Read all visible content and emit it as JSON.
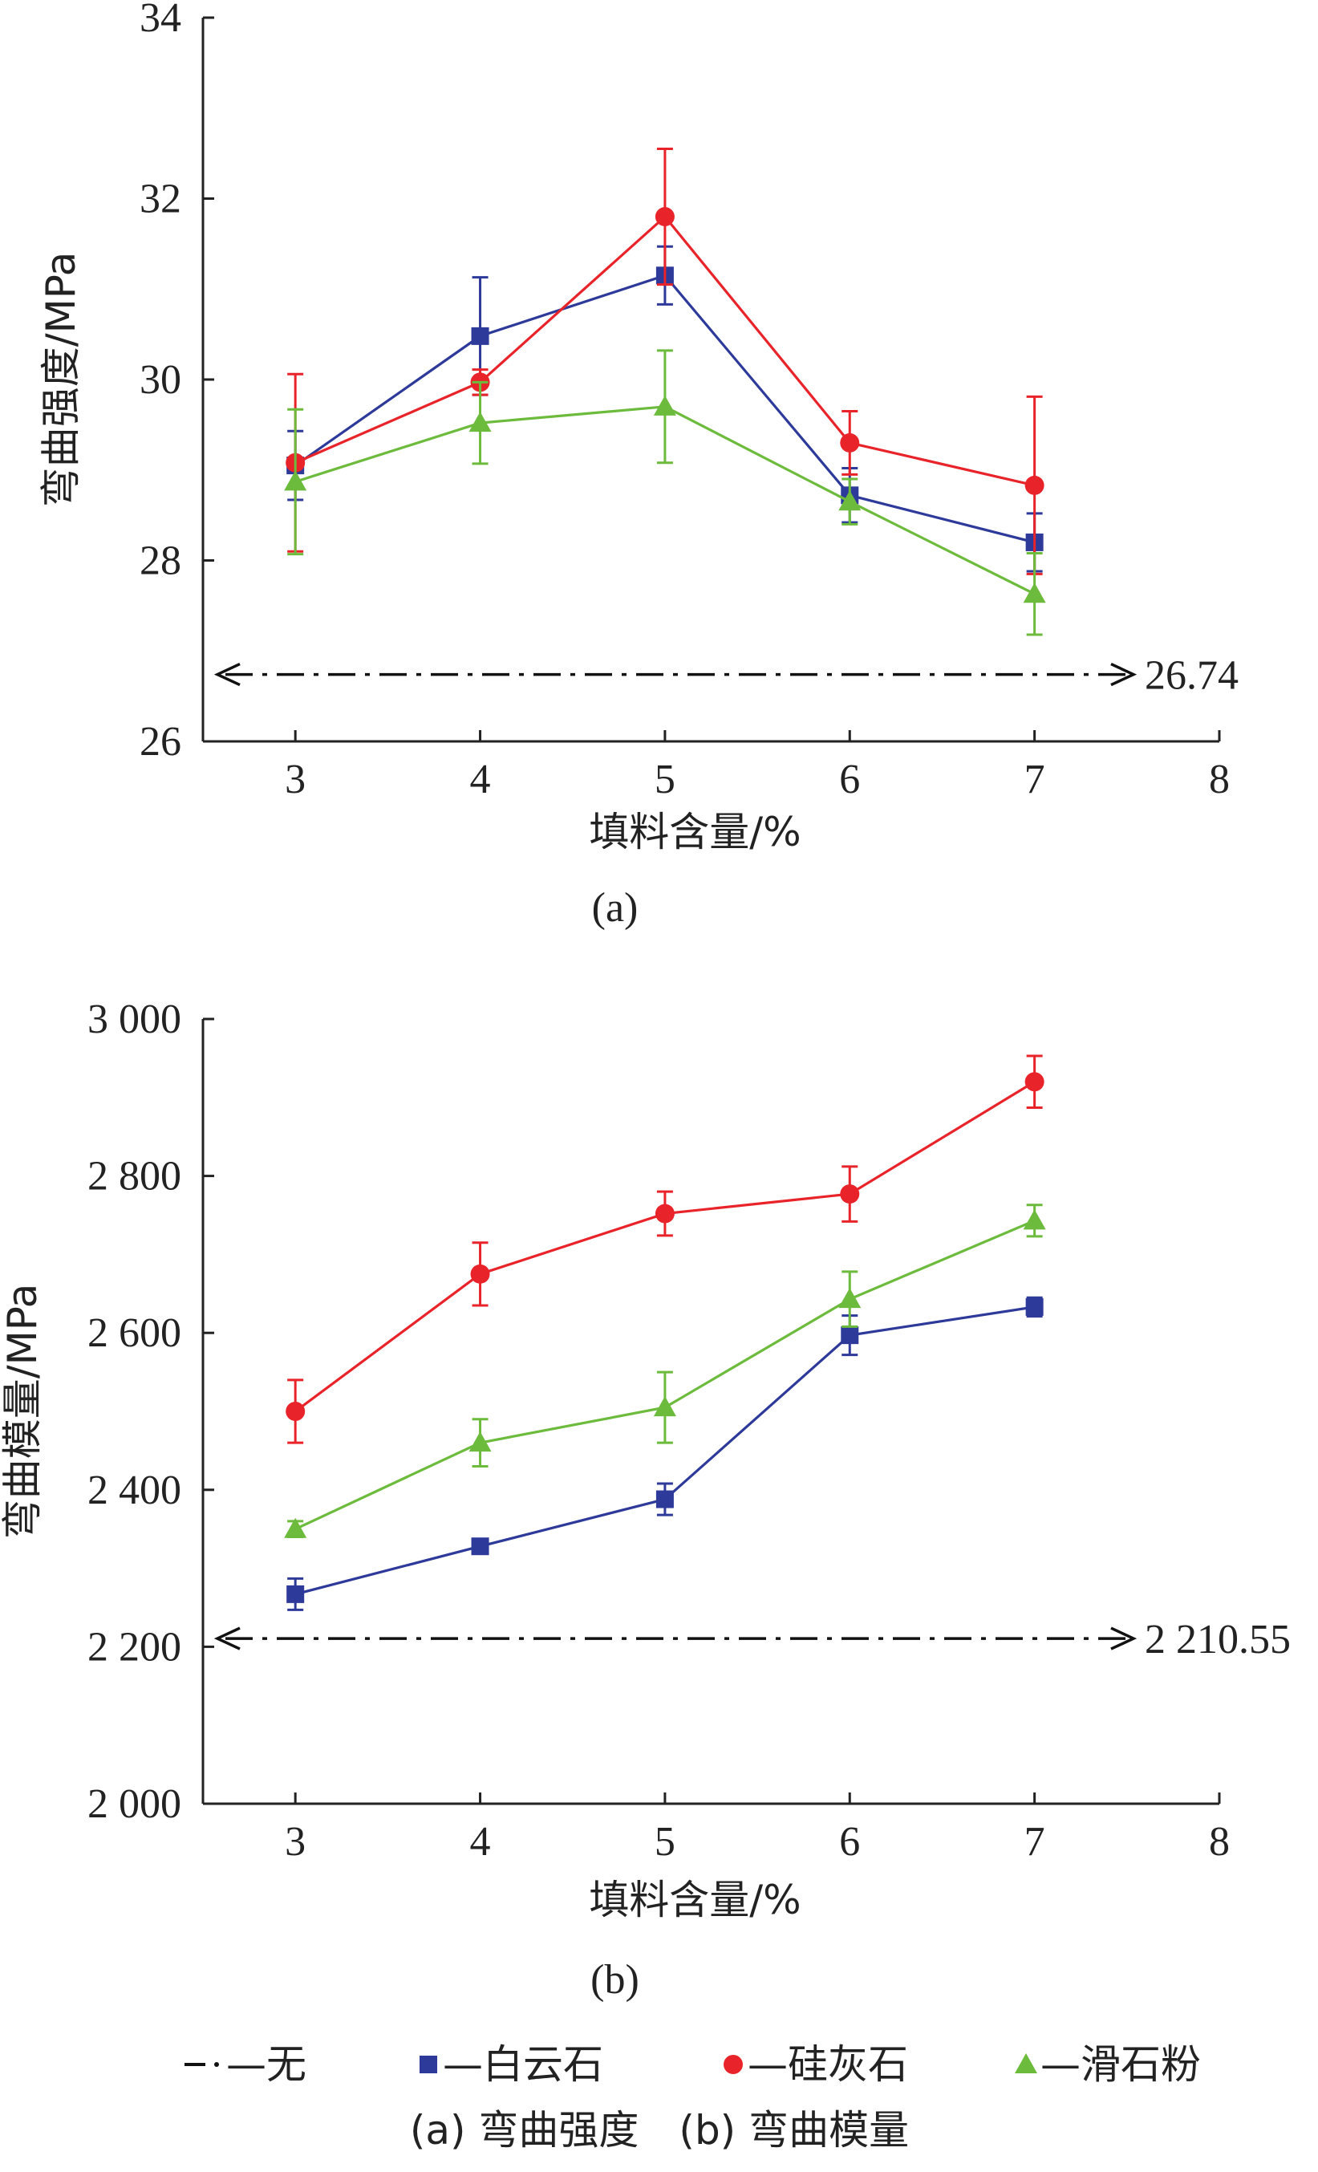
{
  "chart_data": [
    {
      "type": "line",
      "panel_label": "(a)",
      "xlabel": "填料含量/%",
      "ylabel": "弯曲强度/MPa",
      "xlim": [
        2.5,
        8
      ],
      "ylim": [
        26,
        34
      ],
      "xticks": [
        "3",
        "4",
        "5",
        "6",
        "7",
        "8"
      ],
      "yticks": [
        "26",
        "28",
        "30",
        "32",
        "34"
      ],
      "reference": {
        "label": "无",
        "value": 26.74,
        "value_label": "26.74"
      },
      "x": [
        3,
        4,
        5,
        6,
        7
      ],
      "series": [
        {
          "name": "白云石",
          "color": "#2e3a9a",
          "marker": "square",
          "values": [
            29.05,
            30.48,
            31.15,
            28.72,
            28.2
          ],
          "errors": [
            0.38,
            0.65,
            0.32,
            0.3,
            0.32
          ]
        },
        {
          "name": "硅灰石",
          "color": "#e8242a",
          "marker": "circle",
          "values": [
            29.08,
            29.97,
            31.8,
            29.3,
            28.83
          ],
          "errors": [
            0.98,
            0.14,
            0.75,
            0.35,
            0.98
          ]
        },
        {
          "name": "滑石粉",
          "color": "#6cbb3c",
          "marker": "triangle",
          "values": [
            28.87,
            29.52,
            29.7,
            28.65,
            27.63
          ],
          "errors": [
            0.8,
            0.45,
            0.62,
            0.25,
            0.45
          ]
        }
      ]
    },
    {
      "type": "line",
      "panel_label": "(b)",
      "xlabel": "填料含量/%",
      "ylabel": "弯曲模量/MPa",
      "xlim": [
        2.5,
        8
      ],
      "ylim": [
        2000,
        3000
      ],
      "xticks": [
        "3",
        "4",
        "5",
        "6",
        "7",
        "8"
      ],
      "yticks": [
        "2 000",
        "2 200",
        "2 400",
        "2 600",
        "2 800",
        "3 000"
      ],
      "reference": {
        "label": "无",
        "value": 2210.55,
        "value_label": "2 210.55"
      },
      "x": [
        3,
        4,
        5,
        6,
        7
      ],
      "series": [
        {
          "name": "白云石",
          "color": "#2e3a9a",
          "marker": "square",
          "values": [
            2267,
            2328,
            2388,
            2597,
            2633
          ],
          "errors": [
            20,
            6,
            20,
            25,
            12
          ]
        },
        {
          "name": "硅灰石",
          "color": "#e8242a",
          "marker": "circle",
          "values": [
            2500,
            2675,
            2752,
            2777,
            2920
          ],
          "errors": [
            40,
            40,
            28,
            35,
            33
          ]
        },
        {
          "name": "滑石粉",
          "color": "#6cbb3c",
          "marker": "triangle",
          "values": [
            2350,
            2460,
            2505,
            2643,
            2743
          ],
          "errors": [
            10,
            30,
            45,
            35,
            20
          ]
        }
      ]
    }
  ],
  "legend": [
    {
      "label": "—无",
      "marker": "dashdot",
      "color": "#111111"
    },
    {
      "label": "—白云石",
      "marker": "square",
      "color": "#2e3a9a"
    },
    {
      "label": "—硅灰石",
      "marker": "circle",
      "color": "#e8242a"
    },
    {
      "label": "—滑石粉",
      "marker": "triangle",
      "color": "#6cbb3c"
    }
  ],
  "caption": "(a) 弯曲强度　(b) 弯曲模量"
}
